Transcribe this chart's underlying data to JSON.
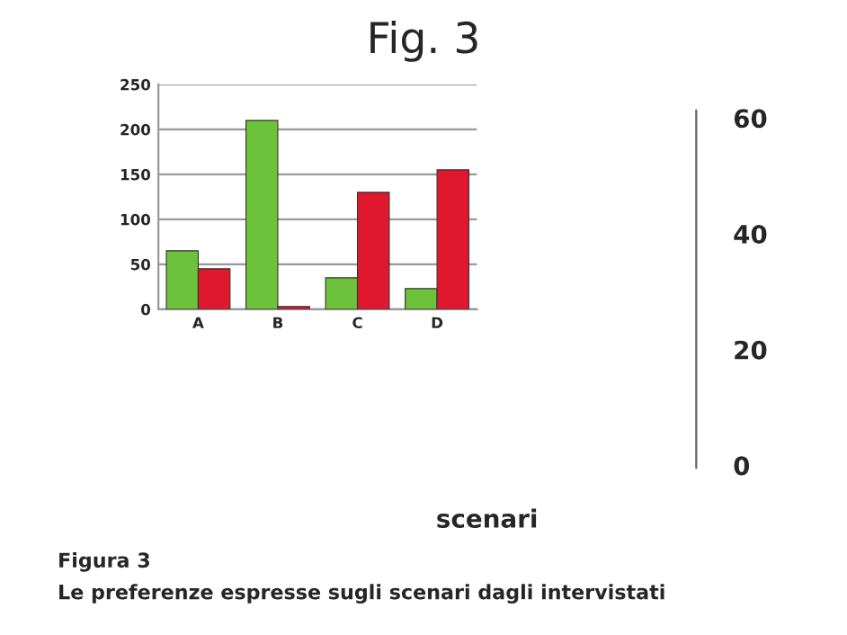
{
  "chart_data": {
    "type": "bar",
    "title": "Fig. 3",
    "categories": [
      "A",
      "B",
      "C",
      "D"
    ],
    "series": [
      {
        "color": "#6cc23a",
        "values": [
          65,
          210,
          35,
          23
        ]
      },
      {
        "color": "#e0182d",
        "values": [
          45,
          3,
          130,
          155
        ]
      }
    ],
    "ylim": [
      0,
      250
    ],
    "yticks": [
      0,
      50,
      100,
      150,
      200,
      250
    ],
    "grid": "y",
    "annotations": [
      "scenari",
      "Figura 3",
      "Le preferenze espresse sugli scenari dagli intervistati",
      "60",
      "40",
      "20",
      "0"
    ]
  }
}
